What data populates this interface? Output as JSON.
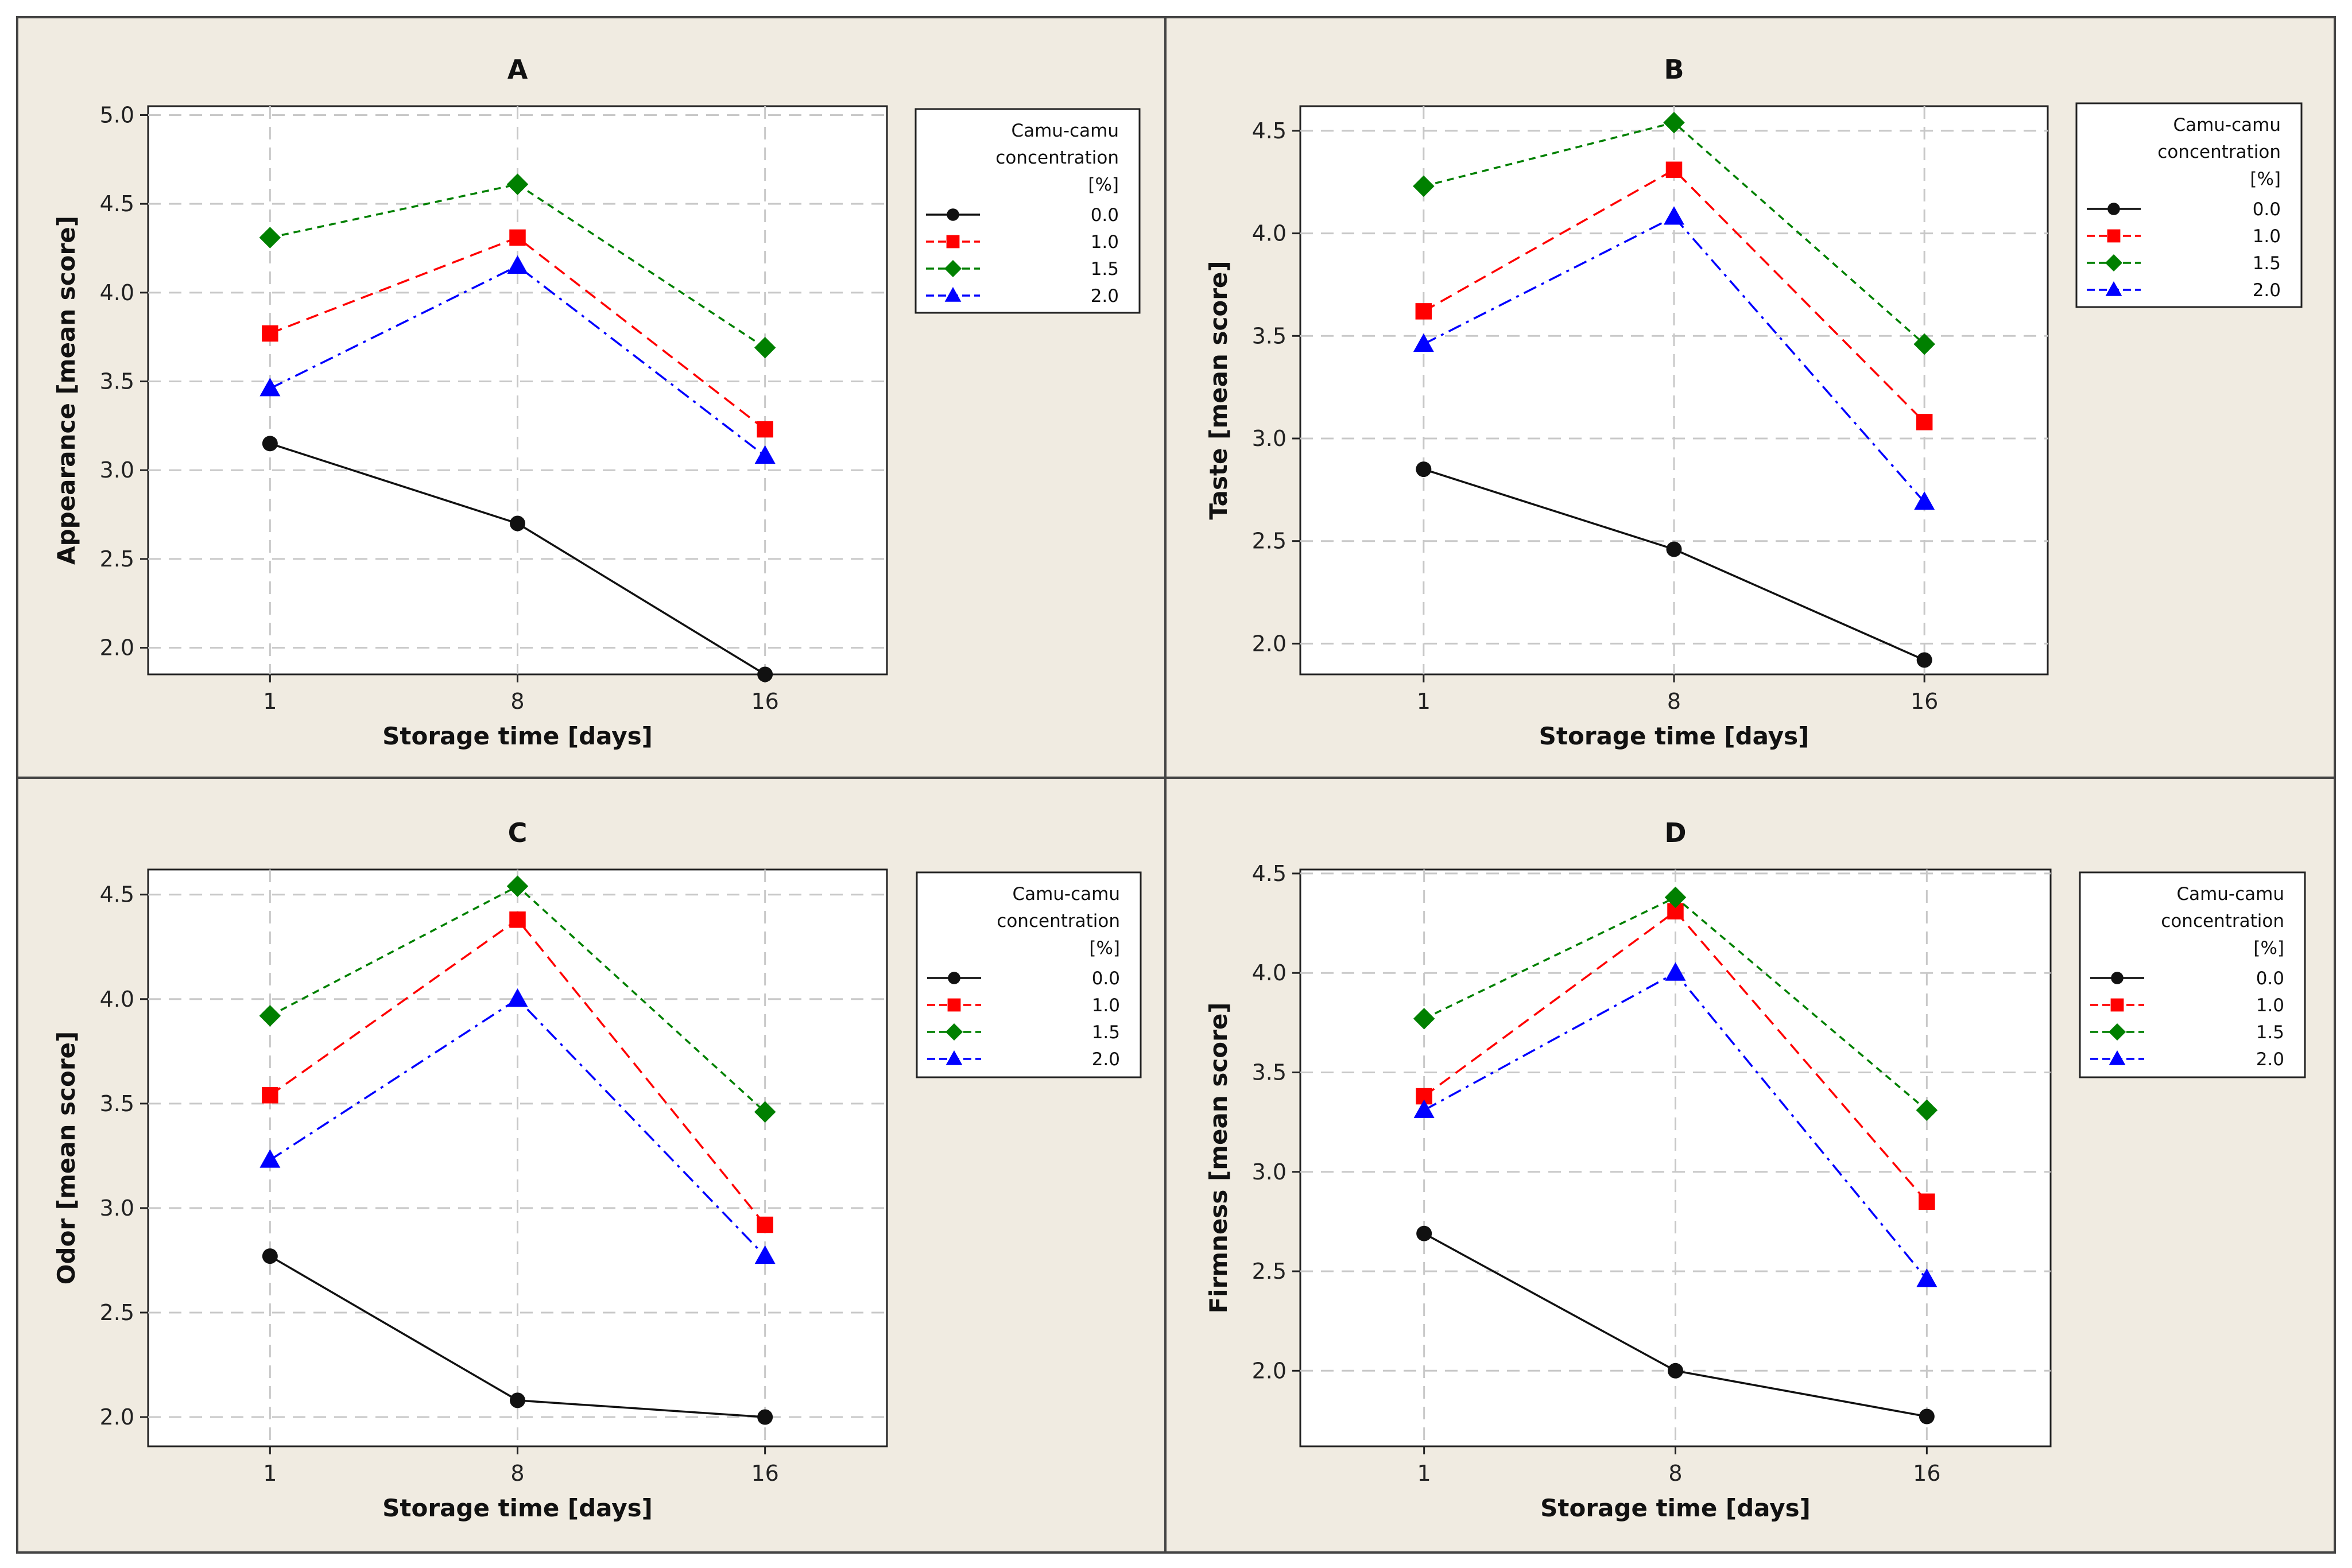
{
  "legend": {
    "title_lines": [
      "Camu-camu",
      "concentration",
      "[%]"
    ]
  },
  "series_styles": [
    {
      "color": "#111111",
      "marker": "circle",
      "dash": ""
    },
    {
      "color": "#ff0000",
      "marker": "square",
      "dash": "22 12"
    },
    {
      "color": "#008000",
      "marker": "diamond",
      "dash": "12 9"
    },
    {
      "color": "#0000ff",
      "marker": "triangle",
      "dash": "24 10 5 10"
    }
  ],
  "chart_data": [
    {
      "type": "line",
      "title": "A",
      "xlabel": "Storage time [days]",
      "ylabel": "Appearance [mean score]",
      "categories": [
        "1",
        "8",
        "16"
      ],
      "ylim": [
        1.85,
        5.05
      ],
      "yticks": [
        2.0,
        2.5,
        3.0,
        3.5,
        4.0,
        4.5,
        5.0
      ],
      "grid": true,
      "legend_position": "right",
      "series": [
        {
          "name": "0.0",
          "values": [
            3.15,
            2.7,
            1.85
          ]
        },
        {
          "name": "1.0",
          "values": [
            3.77,
            4.31,
            3.23
          ]
        },
        {
          "name": "1.5",
          "values": [
            4.31,
            4.61,
            3.69
          ]
        },
        {
          "name": "2.0",
          "values": [
            3.46,
            4.15,
            3.08
          ]
        }
      ]
    },
    {
      "type": "line",
      "title": "B",
      "xlabel": "Storage time [days]",
      "ylabel": "Taste [mean score]",
      "categories": [
        "1",
        "8",
        "16"
      ],
      "ylim": [
        1.85,
        4.62
      ],
      "yticks": [
        2.0,
        2.5,
        3.0,
        3.5,
        4.0,
        4.5
      ],
      "grid": true,
      "legend_position": "right",
      "series": [
        {
          "name": "0.0",
          "values": [
            2.85,
            2.46,
            1.92
          ]
        },
        {
          "name": "1.0",
          "values": [
            3.62,
            4.31,
            3.08
          ]
        },
        {
          "name": "1.5",
          "values": [
            4.23,
            4.54,
            3.46
          ]
        },
        {
          "name": "2.0",
          "values": [
            3.46,
            4.08,
            2.69
          ]
        }
      ]
    },
    {
      "type": "line",
      "title": "C",
      "xlabel": "Storage time [days]",
      "ylabel": "Odor [mean score]",
      "categories": [
        "1",
        "8",
        "16"
      ],
      "ylim": [
        1.86,
        4.62
      ],
      "yticks": [
        2.0,
        2.5,
        3.0,
        3.5,
        4.0,
        4.5
      ],
      "grid": true,
      "legend_position": "right",
      "series": [
        {
          "name": "0.0",
          "values": [
            2.77,
            2.08,
            2.0
          ]
        },
        {
          "name": "1.0",
          "values": [
            3.54,
            4.38,
            2.92
          ]
        },
        {
          "name": "1.5",
          "values": [
            3.92,
            4.54,
            3.46
          ]
        },
        {
          "name": "2.0",
          "values": [
            3.23,
            4.0,
            2.77
          ]
        }
      ]
    },
    {
      "type": "line",
      "title": "D",
      "xlabel": "Storage time [days]",
      "ylabel": "Firmness [mean score]",
      "categories": [
        "1",
        "8",
        "16"
      ],
      "ylim": [
        1.62,
        4.52
      ],
      "yticks": [
        2.0,
        2.5,
        3.0,
        3.5,
        4.0,
        4.5
      ],
      "grid": true,
      "legend_position": "right",
      "series": [
        {
          "name": "0.0",
          "values": [
            2.69,
            2.0,
            1.77
          ]
        },
        {
          "name": "1.0",
          "values": [
            3.38,
            4.31,
            2.85
          ]
        },
        {
          "name": "1.5",
          "values": [
            3.77,
            4.38,
            3.31
          ]
        },
        {
          "name": "2.0",
          "values": [
            3.31,
            4.0,
            2.46
          ]
        }
      ]
    }
  ]
}
